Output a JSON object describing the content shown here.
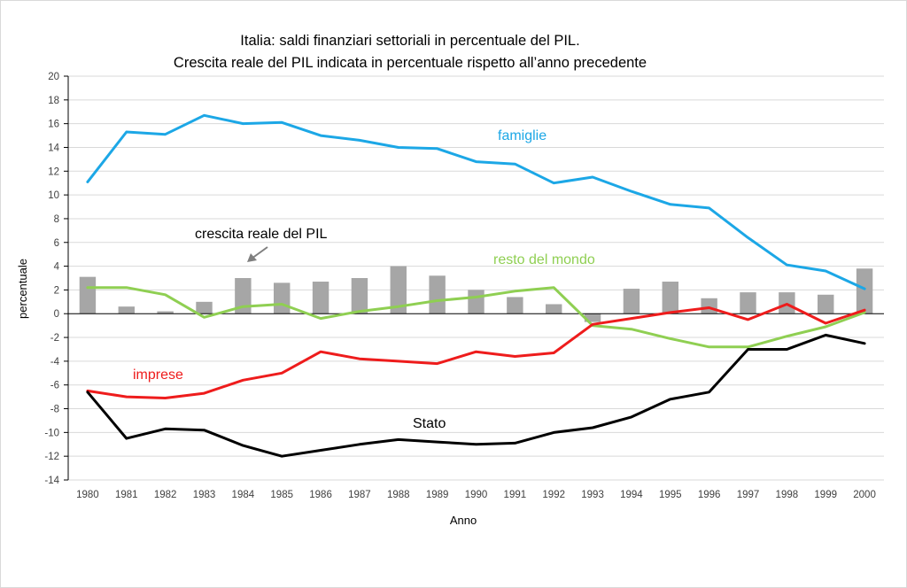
{
  "chart_data": {
    "type": "line",
    "title": [
      "Italia: saldi finanziari settoriali in percentuale del PIL.",
      "Crescita reale del PIL indicata in percentuale rispetto all’anno precedente"
    ],
    "xlabel": "Anno",
    "ylabel": "percentuale",
    "ylim": [
      -14,
      20
    ],
    "yticks": [
      "20",
      "18",
      "16",
      "14",
      "12",
      "10",
      "8",
      "6",
      "4",
      "2",
      "0",
      "-2",
      "-4",
      "-6",
      "-8",
      "-10",
      "-12",
      "-14"
    ],
    "categories": [
      "1980",
      "1981",
      "1982",
      "1983",
      "1984",
      "1985",
      "1986",
      "1987",
      "1988",
      "1989",
      "1990",
      "1991",
      "1992",
      "1993",
      "1994",
      "1995",
      "1996",
      "1997",
      "1998",
      "1999",
      "2000"
    ],
    "grid": true,
    "series": [
      {
        "name": "crescita reale del PIL",
        "kind": "bar",
        "color": "#a6a6a6",
        "values": [
          3.1,
          0.6,
          0.2,
          1.0,
          3.0,
          2.6,
          2.7,
          3.0,
          4.0,
          3.2,
          2.0,
          1.4,
          0.8,
          -0.7,
          2.1,
          2.7,
          1.3,
          1.8,
          1.8,
          1.6,
          3.8
        ]
      },
      {
        "name": "famiglie",
        "kind": "line",
        "color": "#1ca7e6",
        "values": [
          11.1,
          15.3,
          15.1,
          16.7,
          16.0,
          16.1,
          15.0,
          14.6,
          14.0,
          13.9,
          12.8,
          12.6,
          11.0,
          11.5,
          10.3,
          9.2,
          8.9,
          6.4,
          4.1,
          3.6,
          2.1
        ]
      },
      {
        "name": "resto del mondo",
        "kind": "line",
        "color": "#8fcf52",
        "values": [
          2.2,
          2.2,
          1.6,
          -0.3,
          0.6,
          0.8,
          -0.4,
          0.2,
          0.6,
          1.1,
          1.4,
          1.9,
          2.2,
          -1.0,
          -1.3,
          -2.1,
          -2.8,
          -2.8,
          -1.9,
          -1.1,
          0.1
        ]
      },
      {
        "name": "imprese",
        "kind": "line",
        "color": "#ee1c1c",
        "values": [
          -6.5,
          -7.0,
          -7.1,
          -6.7,
          -5.6,
          -5.0,
          -3.2,
          -3.8,
          -4.0,
          -4.2,
          -3.2,
          -3.6,
          -3.3,
          -0.9,
          -0.4,
          0.1,
          0.5,
          -0.5,
          0.8,
          -0.8,
          0.3
        ]
      },
      {
        "name": "Stato",
        "kind": "line",
        "color": "#000000",
        "values": [
          -6.6,
          -10.5,
          -9.7,
          -9.8,
          -11.1,
          -12.0,
          -11.5,
          -11.0,
          -10.6,
          -10.8,
          -11.0,
          -10.9,
          -10.0,
          -9.6,
          -8.7,
          -7.2,
          -6.6,
          -3.0,
          -3.0,
          -1.8,
          -2.5
        ]
      }
    ],
    "annotations": [
      {
        "text": "famiglie",
        "color": "#1ca7e6"
      },
      {
        "text": "crescita reale del PIL",
        "color": "#000000"
      },
      {
        "text": "resto del mondo",
        "color": "#8fcf52"
      },
      {
        "text": "imprese",
        "color": "#ee1c1c"
      },
      {
        "text": "Stato",
        "color": "#000000"
      }
    ]
  }
}
